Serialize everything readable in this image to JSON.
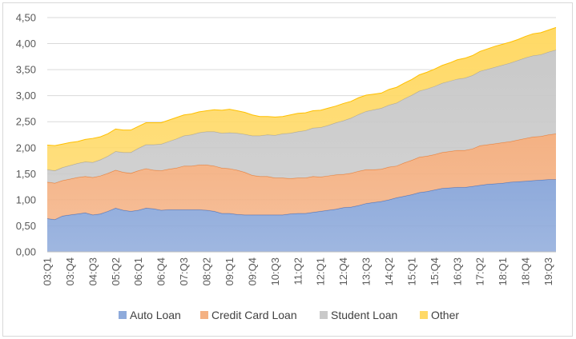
{
  "chart_data": {
    "type": "area",
    "stacked": true,
    "title": "",
    "xlabel": "",
    "ylabel": "",
    "ylim": [
      0,
      4.5
    ],
    "y_ticks": [
      "0,00",
      "0,50",
      "1,00",
      "1,50",
      "2,00",
      "2,50",
      "3,00",
      "3,50",
      "4,00",
      "4,50"
    ],
    "x": [
      "03:Q1",
      "03:Q2",
      "03:Q3",
      "03:Q4",
      "04:Q1",
      "04:Q2",
      "04:Q3",
      "04:Q4",
      "05:Q1",
      "05:Q2",
      "05:Q3",
      "05:Q4",
      "06:Q1",
      "06:Q2",
      "06:Q3",
      "06:Q4",
      "07:Q1",
      "07:Q2",
      "07:Q3",
      "07:Q4",
      "08:Q1",
      "08:Q2",
      "08:Q3",
      "08:Q4",
      "09:Q1",
      "09:Q2",
      "09:Q3",
      "09:Q4",
      "10:Q1",
      "10:Q2",
      "10:Q3",
      "10:Q4",
      "11:Q1",
      "11:Q2",
      "11:Q3",
      "11:Q4",
      "12:Q1",
      "12:Q2",
      "12:Q3",
      "12:Q4",
      "13:Q1",
      "13:Q2",
      "13:Q3",
      "13:Q4",
      "14:Q1",
      "14:Q2",
      "14:Q3",
      "14:Q4",
      "15:Q1",
      "15:Q2",
      "15:Q3",
      "15:Q4",
      "16:Q1",
      "16:Q2",
      "16:Q3",
      "16:Q4",
      "17:Q1",
      "17:Q2",
      "17:Q3",
      "17:Q4",
      "18:Q1",
      "18:Q2",
      "18:Q3",
      "18:Q4",
      "19:Q1",
      "19:Q2",
      "19:Q3",
      "19:Q4"
    ],
    "x_tick_labels": [
      "03:Q1",
      "03:Q4",
      "04:Q3",
      "05:Q2",
      "06:Q1",
      "06:Q4",
      "07:Q3",
      "08:Q2",
      "09:Q1",
      "09:Q4",
      "10:Q3",
      "11:Q2",
      "12:Q1",
      "12:Q4",
      "13:Q3",
      "14:Q2",
      "15:Q1",
      "15:Q4",
      "16:Q3",
      "17:Q2",
      "18:Q1",
      "18:Q4",
      "19:Q3"
    ],
    "series": [
      {
        "name": "Auto Loan",
        "color": "#8eaadb",
        "values": [
          0.64,
          0.62,
          0.69,
          0.71,
          0.73,
          0.75,
          0.71,
          0.73,
          0.78,
          0.84,
          0.8,
          0.78,
          0.8,
          0.84,
          0.83,
          0.8,
          0.81,
          0.81,
          0.81,
          0.81,
          0.81,
          0.8,
          0.78,
          0.74,
          0.74,
          0.72,
          0.71,
          0.71,
          0.71,
          0.71,
          0.71,
          0.71,
          0.73,
          0.74,
          0.74,
          0.76,
          0.78,
          0.8,
          0.82,
          0.85,
          0.86,
          0.89,
          0.93,
          0.95,
          0.97,
          1.0,
          1.04,
          1.07,
          1.1,
          1.14,
          1.16,
          1.19,
          1.22,
          1.23,
          1.24,
          1.24,
          1.26,
          1.28,
          1.3,
          1.31,
          1.32,
          1.34,
          1.35,
          1.36,
          1.37,
          1.38,
          1.39,
          1.39
        ]
      },
      {
        "name": "Credit Card Loan",
        "color": "#f4b183",
        "values": [
          0.7,
          0.7,
          0.68,
          0.69,
          0.7,
          0.7,
          0.72,
          0.73,
          0.73,
          0.73,
          0.73,
          0.73,
          0.76,
          0.76,
          0.74,
          0.76,
          0.78,
          0.8,
          0.84,
          0.84,
          0.86,
          0.87,
          0.87,
          0.87,
          0.86,
          0.85,
          0.82,
          0.76,
          0.74,
          0.74,
          0.71,
          0.71,
          0.68,
          0.68,
          0.68,
          0.69,
          0.66,
          0.66,
          0.66,
          0.64,
          0.65,
          0.66,
          0.65,
          0.63,
          0.62,
          0.63,
          0.61,
          0.64,
          0.66,
          0.68,
          0.68,
          0.68,
          0.69,
          0.7,
          0.71,
          0.71,
          0.72,
          0.76,
          0.76,
          0.77,
          0.78,
          0.78,
          0.8,
          0.82,
          0.84,
          0.84,
          0.86,
          0.88
        ]
      },
      {
        "name": "Student Loan",
        "color": "#c9c9c9",
        "values": [
          0.24,
          0.24,
          0.25,
          0.26,
          0.27,
          0.28,
          0.29,
          0.31,
          0.33,
          0.36,
          0.38,
          0.4,
          0.43,
          0.46,
          0.49,
          0.51,
          0.53,
          0.56,
          0.58,
          0.6,
          0.62,
          0.64,
          0.66,
          0.67,
          0.69,
          0.71,
          0.73,
          0.76,
          0.78,
          0.8,
          0.82,
          0.85,
          0.87,
          0.89,
          0.91,
          0.93,
          0.95,
          0.97,
          1.0,
          1.03,
          1.06,
          1.09,
          1.12,
          1.15,
          1.17,
          1.19,
          1.21,
          1.23,
          1.25,
          1.27,
          1.29,
          1.31,
          1.33,
          1.35,
          1.37,
          1.39,
          1.41,
          1.43,
          1.45,
          1.47,
          1.49,
          1.51,
          1.53,
          1.55,
          1.56,
          1.57,
          1.59,
          1.61
        ]
      },
      {
        "name": "Other",
        "color": "#ffd966",
        "values": [
          0.47,
          0.48,
          0.45,
          0.44,
          0.42,
          0.43,
          0.46,
          0.44,
          0.43,
          0.43,
          0.43,
          0.43,
          0.42,
          0.42,
          0.42,
          0.41,
          0.41,
          0.41,
          0.4,
          0.4,
          0.4,
          0.4,
          0.42,
          0.44,
          0.45,
          0.43,
          0.42,
          0.4,
          0.37,
          0.35,
          0.35,
          0.33,
          0.35,
          0.35,
          0.34,
          0.33,
          0.33,
          0.33,
          0.32,
          0.33,
          0.32,
          0.32,
          0.31,
          0.3,
          0.29,
          0.3,
          0.3,
          0.3,
          0.3,
          0.31,
          0.32,
          0.33,
          0.34,
          0.35,
          0.37,
          0.38,
          0.38,
          0.38,
          0.39,
          0.4,
          0.4,
          0.4,
          0.4,
          0.41,
          0.42,
          0.42,
          0.42,
          0.43
        ]
      }
    ],
    "grid": true,
    "legend_position": "bottom"
  }
}
